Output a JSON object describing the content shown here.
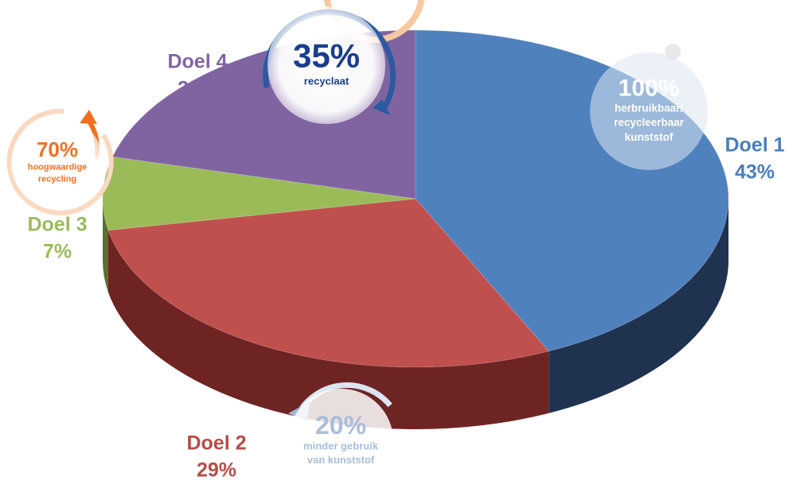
{
  "chart_data": {
    "type": "pie3d",
    "categories": [
      "Doel 1",
      "Doel 2",
      "Doel 3",
      "Doel 4"
    ],
    "values": [
      43,
      29,
      7,
      21
    ],
    "value_labels": [
      "43%",
      "29%",
      "7%",
      "21%"
    ],
    "colors": [
      "#4f81bd",
      "#c0504d",
      "#9bbb59",
      "#8064a2"
    ],
    "side_colors": [
      "#1f3350",
      "#6e2423",
      "#5a6f33",
      "#4a3a60"
    ],
    "label_colors": [
      "#4a7ebb",
      "#b94a48",
      "#9bbb59",
      "#8064a2"
    ],
    "annotations": [
      {
        "big": "100%",
        "lines": [
          "herbruikbaar/",
          "recycleerbaar",
          "kunststof"
        ]
      },
      {
        "big": "35%",
        "lines": [
          "recyclaat"
        ]
      },
      {
        "big": "70%",
        "lines": [
          "hoogwaardige",
          "recycling"
        ]
      },
      {
        "big": "20%",
        "lines": [
          "minder gebruik",
          "van kunststof"
        ]
      }
    ]
  }
}
